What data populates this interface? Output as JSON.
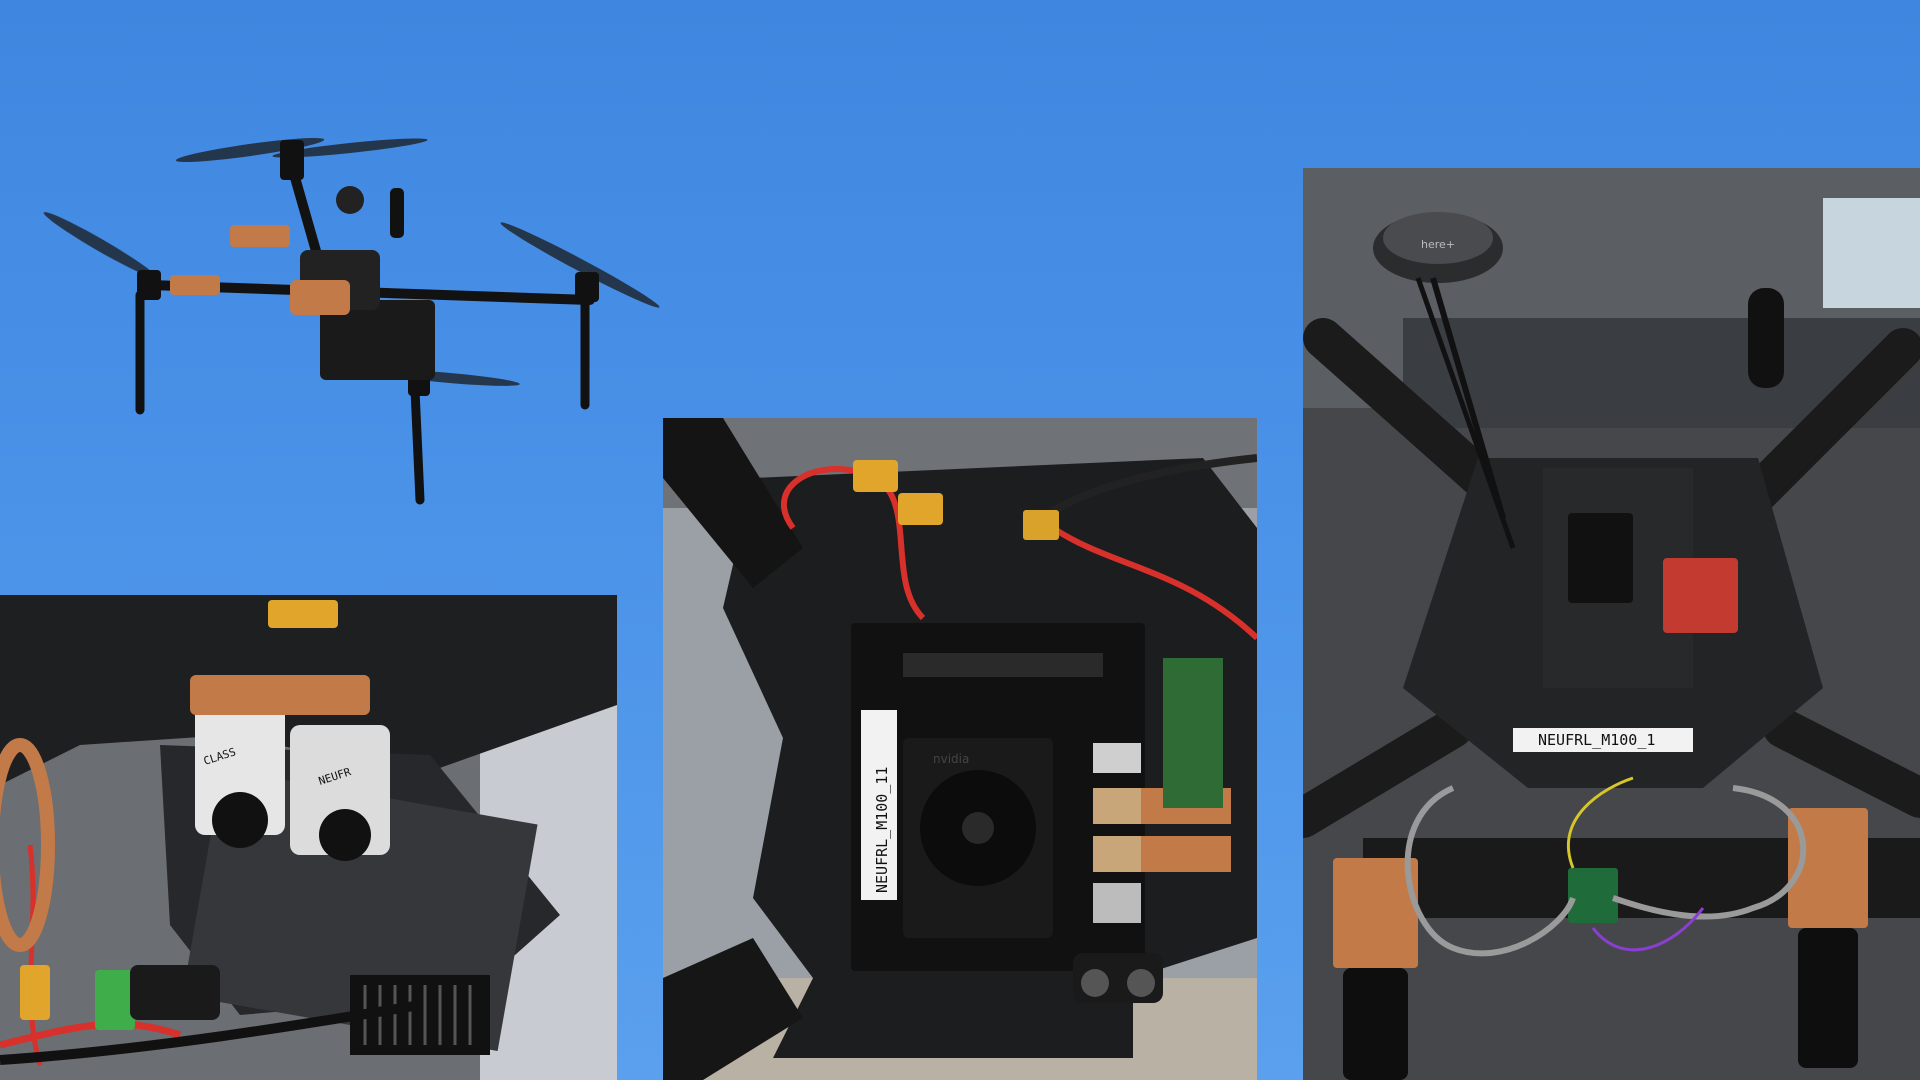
{
  "scene": {
    "description_colors": {
      "sky": "#4a92e8",
      "carbon": "#1d1e20",
      "copper": "#c27a48",
      "red_wire": "#d8302a",
      "bench": "#3a3c40"
    }
  },
  "photos": {
    "drone_in_flight": {},
    "sensor_closeup": {
      "sticker_line1": "CLASS",
      "sticker_line2": "NEUFR"
    },
    "compute_board": {
      "board_label": "NEUFRL_M100_11",
      "brand": "nvidia"
    },
    "top_view": {
      "board_label": "NEUFRL_M100_1",
      "gps_brand": "here+"
    }
  }
}
